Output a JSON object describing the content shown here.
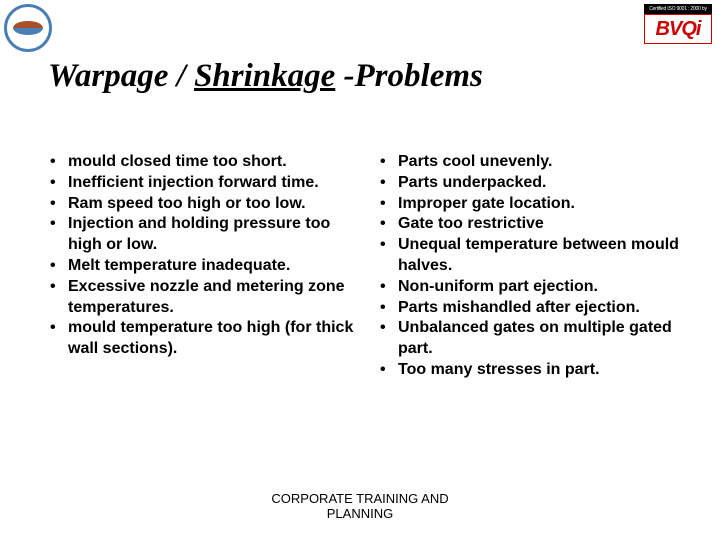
{
  "header": {
    "cert_text": "Certified ISO 9001 : 2000 by",
    "bvqi_text": "BVQi"
  },
  "title": {
    "part1": "Warpage / ",
    "underlined": "Shrinkage",
    "part2": " -Problems"
  },
  "left_bullets": [
    "mould closed time too short.",
    "Inefficient injection forward time.",
    "Ram speed too high or too low.",
    "Injection and holding pressure too high or low.",
    "Melt temperature inadequate.",
    "Excessive nozzle and metering zone temperatures.",
    "mould temperature too high (for thick wall sections)."
  ],
  "right_bullets": [
    "Parts cool unevenly.",
    "Parts underpacked.",
    "Improper gate location.",
    "Gate too restrictive",
    "Unequal temperature between mould halves.",
    "Non-uniform part ejection.",
    "Parts mishandled after ejection.",
    "Unbalanced gates on multiple gated part.",
    "Too many stresses in part."
  ],
  "footer": {
    "line1": "CORPORATE TRAINING AND",
    "line2": "PLANNING"
  },
  "colors": {
    "text": "#000000",
    "background": "#ffffff",
    "logo_blue": "#4a7fb5",
    "logo_red": "#cc0000"
  }
}
